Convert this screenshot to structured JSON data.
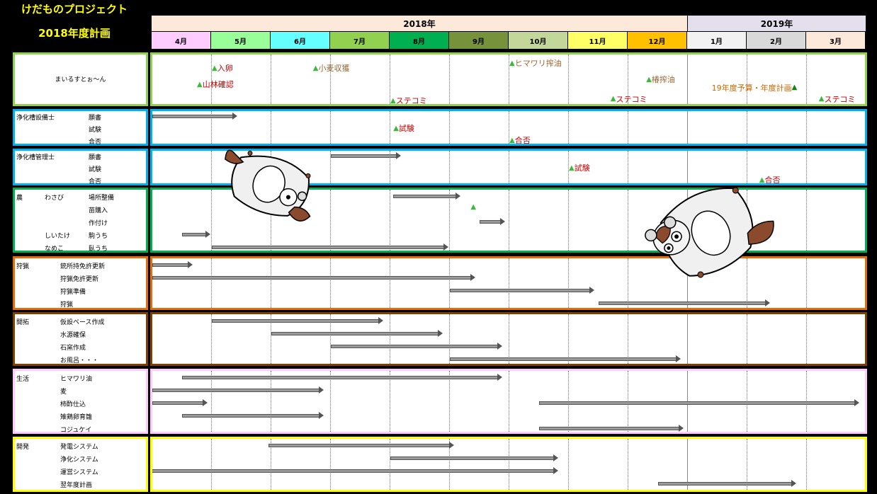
{
  "header": {
    "title_line1": "けだものプロジェクト",
    "title_line2": "2018年度計画"
  },
  "years": [
    {
      "label": "2018年"
    },
    {
      "label": "2019年"
    }
  ],
  "months": [
    {
      "label": "4月",
      "color": "#ffccff"
    },
    {
      "label": "5月",
      "color": "#99ff99"
    },
    {
      "label": "6月",
      "color": "#66ffff"
    },
    {
      "label": "7月",
      "color": "#92d050"
    },
    {
      "label": "8月",
      "color": "#00b050"
    },
    {
      "label": "9月",
      "color": "#76933c"
    },
    {
      "label": "10月",
      "color": "#c4d79b"
    },
    {
      "label": "11月",
      "color": "#ffff66"
    },
    {
      "label": "12月",
      "color": "#ffc000"
    },
    {
      "label": "1月",
      "color": "#f2f2f2"
    },
    {
      "label": "2月",
      "color": "#d9d9d9"
    },
    {
      "label": "3月",
      "color": "#fde9d9"
    }
  ],
  "rows": [
    {
      "id": "mailstone",
      "border": "#92d050",
      "label_center": "まいるすとぉ〜ん",
      "category": "",
      "items": [],
      "milestones": [
        {
          "text": "入卵",
          "month": 1.0,
          "line": 0,
          "color": "#c00000"
        },
        {
          "text": "山林確認",
          "month": 0.75,
          "line": 1,
          "color": "#c00000"
        },
        {
          "text": "小麦収獲",
          "month": 2.7,
          "line": 0,
          "color": "#996633"
        },
        {
          "text": "ステコミ",
          "month": 4.0,
          "line": 2,
          "color": "#c00000"
        },
        {
          "text": "ヒマワリ搾油",
          "month": 6.0,
          "line": -0.3,
          "color": "#996633"
        },
        {
          "text": "椿搾油",
          "month": 8.3,
          "line": 0.7,
          "color": "#996633"
        },
        {
          "text": "ステコミ",
          "month": 7.7,
          "line": 1.9,
          "color": "#c00000"
        },
        {
          "text": "19年度予算・年度計画",
          "month": 9.4,
          "line": 1.2,
          "color": "#cc6600",
          "tri_after": true
        },
        {
          "text": "ステコミ",
          "month": 11.2,
          "line": 1.9,
          "color": "#c00000"
        }
      ],
      "bars": []
    },
    {
      "id": "jouka-setsubi",
      "border": "#00b0f0",
      "category": "浄化槽設備士",
      "items": [
        {
          "text": "願書"
        },
        {
          "text": "試験"
        },
        {
          "text": "合否"
        }
      ],
      "milestones": [
        {
          "text": "試験",
          "month": 4.05,
          "line": 1,
          "color": "#c00000"
        },
        {
          "text": "合否",
          "month": 6.0,
          "line": 2,
          "color": "#c00000"
        }
      ],
      "bars": [
        {
          "line": 0,
          "start": 0.0,
          "end": 1.45
        }
      ]
    },
    {
      "id": "jouka-kanri",
      "border": "#00b0f0",
      "category": "浄化槽管理士",
      "items": [
        {
          "text": "願書"
        },
        {
          "text": "試験"
        },
        {
          "text": "合否"
        }
      ],
      "milestones": [
        {
          "text": "試験",
          "month": 7.0,
          "line": 1,
          "color": "#c00000"
        },
        {
          "text": "合否",
          "month": 10.2,
          "line": 2,
          "color": "#c00000"
        }
      ],
      "bars": [
        {
          "line": 0,
          "start": 3.0,
          "end": 4.2
        }
      ]
    },
    {
      "id": "nou",
      "border": "#00b050",
      "category": "農",
      "items": [
        {
          "sub": "わさび",
          "text": "場所整備"
        },
        {
          "sub": "",
          "text": "苗購入"
        },
        {
          "sub": "",
          "text": "作付け"
        },
        {
          "sub": "しいたけ",
          "text": "駒うち"
        },
        {
          "sub": "なめこ",
          "text": "臥うち"
        }
      ],
      "milestones": [
        {
          "text": "",
          "month": 5.35,
          "line": 1,
          "color": "#c00000"
        }
      ],
      "bars": [
        {
          "line": 0,
          "start": 4.05,
          "end": 5.2
        },
        {
          "line": 2,
          "start": 5.5,
          "end": 5.95
        },
        {
          "line": 3,
          "start": 0.5,
          "end": 1.0
        },
        {
          "line": 4,
          "start": 1.0,
          "end": 5.0
        }
      ]
    },
    {
      "id": "shuryou",
      "border": "#e46c0a",
      "category": "狩猟",
      "items": [
        {
          "text": "銃所持免許更新"
        },
        {
          "text": "狩猟免許更新"
        },
        {
          "text": "狩猟準備"
        },
        {
          "text": "狩猟"
        }
      ],
      "milestones": [],
      "bars": [
        {
          "line": 0,
          "start": 0.0,
          "end": 0.7
        },
        {
          "line": 1,
          "start": 0.0,
          "end": 5.45
        },
        {
          "line": 2,
          "start": 5.0,
          "end": 7.45
        },
        {
          "line": 3,
          "start": 7.5,
          "end": 10.4
        }
      ]
    },
    {
      "id": "kaitaku",
      "border": "#7f3f00",
      "category": "開拓",
      "items": [
        {
          "text": "仮設ベース作成"
        },
        {
          "text": "水源確保"
        },
        {
          "text": "石窯作成"
        },
        {
          "text": "お風呂・・・"
        }
      ],
      "milestones": [],
      "bars": [
        {
          "line": 0,
          "start": 1.0,
          "end": 3.9
        },
        {
          "line": 1,
          "start": 2.0,
          "end": 4.9
        },
        {
          "line": 2,
          "start": 3.0,
          "end": 5.9
        },
        {
          "line": 3,
          "start": 5.0,
          "end": 8.9
        }
      ]
    },
    {
      "id": "seikatsu",
      "border": "#ffccff",
      "category": "生活",
      "items": [
        {
          "text": "ヒマワリ油"
        },
        {
          "text": "麦"
        },
        {
          "text": "柿酢仕込"
        },
        {
          "text": "雉鶏卵育雛"
        },
        {
          "text": "コジュケイ"
        }
      ],
      "milestones": [],
      "bars": [
        {
          "line": 0,
          "start": 0.5,
          "end": 5.9
        },
        {
          "line": 1,
          "start": 0.0,
          "end": 2.9
        },
        {
          "line": 2,
          "start": 0.0,
          "end": 0.95
        },
        {
          "line": 2,
          "start": 6.5,
          "end": 11.9
        },
        {
          "line": 3,
          "start": 0.5,
          "end": 2.9
        },
        {
          "line": 4,
          "start": 6.5,
          "end": 8.95
        }
      ]
    },
    {
      "id": "kaihatsu",
      "border": "#ffff00",
      "category": "開発",
      "items": [
        {
          "text": "発電システム"
        },
        {
          "text": "浄化システム"
        },
        {
          "text": "運営システム"
        },
        {
          "text": "翌年度計画"
        }
      ],
      "milestones": [],
      "bars": [
        {
          "line": 0,
          "start": 1.95,
          "end": 5.1
        },
        {
          "line": 1,
          "start": 4.0,
          "end": 6.85
        },
        {
          "line": 2,
          "start": -0.1,
          "end": 6.85
        },
        {
          "line": 3,
          "start": 8.5,
          "end": 10.85
        }
      ]
    }
  ]
}
